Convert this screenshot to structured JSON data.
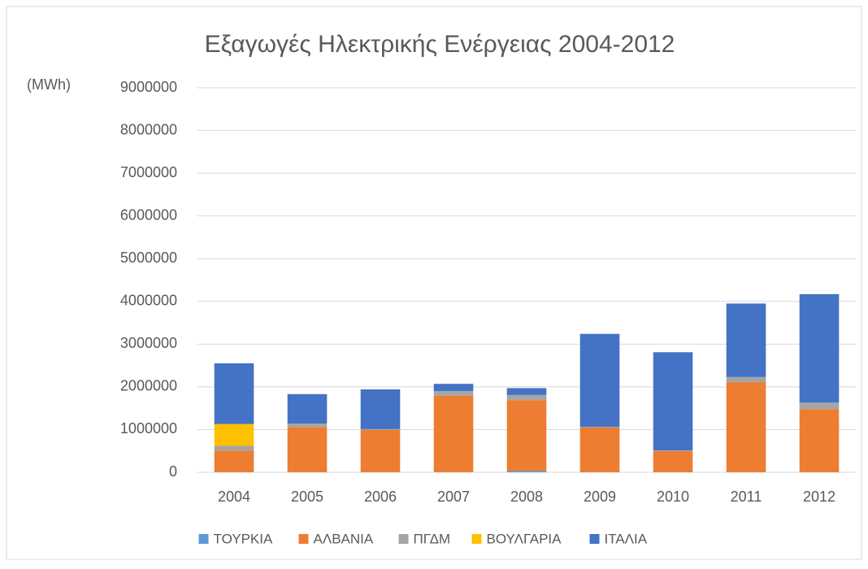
{
  "chart_data": {
    "type": "stacked_bar",
    "title": "Εξαγωγές Ηλεκτρικής Ενέργειας 2004-2012",
    "y_label": "(MWh)",
    "categories": [
      "2004",
      "2005",
      "2006",
      "2007",
      "2008",
      "2009",
      "2010",
      "2011",
      "2012"
    ],
    "series": [
      {
        "name": "ΤΟΥΡΚΙΑ",
        "color": "#5b9bd5",
        "values": [
          0,
          0,
          0,
          0,
          30000,
          0,
          0,
          0,
          0
        ]
      },
      {
        "name": "ΑΛΒΑΝΙΑ",
        "color": "#ed7d31",
        "values": [
          510000,
          1060000,
          990000,
          1790000,
          1660000,
          1050000,
          500000,
          2110000,
          1480000
        ]
      },
      {
        "name": "ΠΓΔΜ",
        "color": "#a5a5a5",
        "values": [
          110000,
          80000,
          20000,
          110000,
          120000,
          10000,
          10000,
          120000,
          150000
        ]
      },
      {
        "name": "ΒΟΥΛΓΑΡΙΑ",
        "color": "#ffc000",
        "values": [
          510000,
          0,
          0,
          0,
          0,
          0,
          0,
          0,
          0
        ]
      },
      {
        "name": "ΙΤΑΛΙΑ",
        "color": "#4472c4",
        "values": [
          1420000,
          690000,
          930000,
          170000,
          160000,
          2180000,
          2300000,
          1720000,
          2540000
        ]
      }
    ],
    "ylim": [
      0,
      9000000
    ],
    "yticks": [
      0,
      1000000,
      2000000,
      3000000,
      4000000,
      5000000,
      6000000,
      7000000,
      8000000,
      9000000
    ],
    "grid": true,
    "legend": "bottom"
  }
}
